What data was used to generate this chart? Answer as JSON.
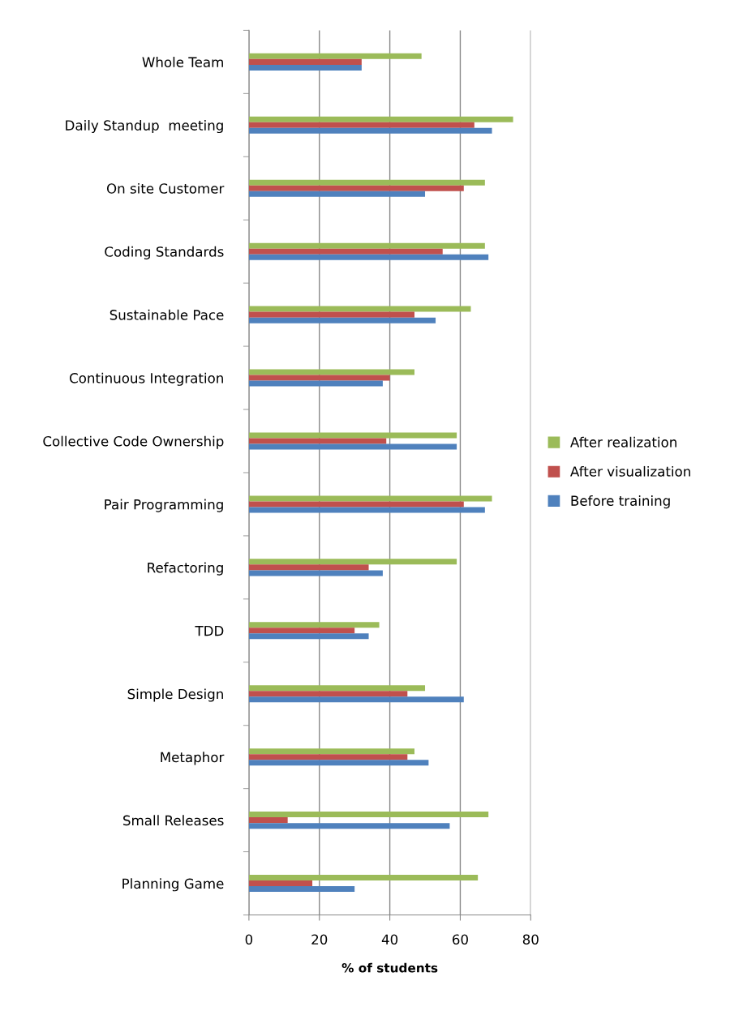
{
  "chart_data": {
    "type": "bar",
    "orientation": "horizontal",
    "xlabel": "% of students",
    "categories": [
      "Whole Team",
      "Daily Standup  meeting",
      "On site Customer",
      "Coding Standards",
      "Sustainable Pace",
      "Continuous Integration",
      "Collective Code Ownership",
      "Pair Programming",
      "Refactoring",
      "TDD",
      "Simple Design",
      "Metaphor",
      "Small Releases",
      "Planning Game"
    ],
    "series": [
      {
        "name": "After realization",
        "color": "#9bbb59",
        "values": [
          49,
          75,
          67,
          67,
          63,
          47,
          59,
          69,
          59,
          37,
          50,
          47,
          68,
          65
        ]
      },
      {
        "name": "After visualization",
        "color": "#c0504d",
        "values": [
          32,
          64,
          61,
          55,
          47,
          40,
          39,
          61,
          34,
          30,
          45,
          45,
          11,
          18
        ]
      },
      {
        "name": "Before training",
        "color": "#4f81bd",
        "values": [
          32,
          69,
          50,
          68,
          53,
          38,
          59,
          67,
          38,
          34,
          61,
          51,
          57,
          30
        ]
      }
    ],
    "xlim": [
      0,
      80
    ],
    "xticks": [
      0,
      20,
      40,
      60,
      80
    ],
    "grid": "x",
    "legend": "right"
  }
}
